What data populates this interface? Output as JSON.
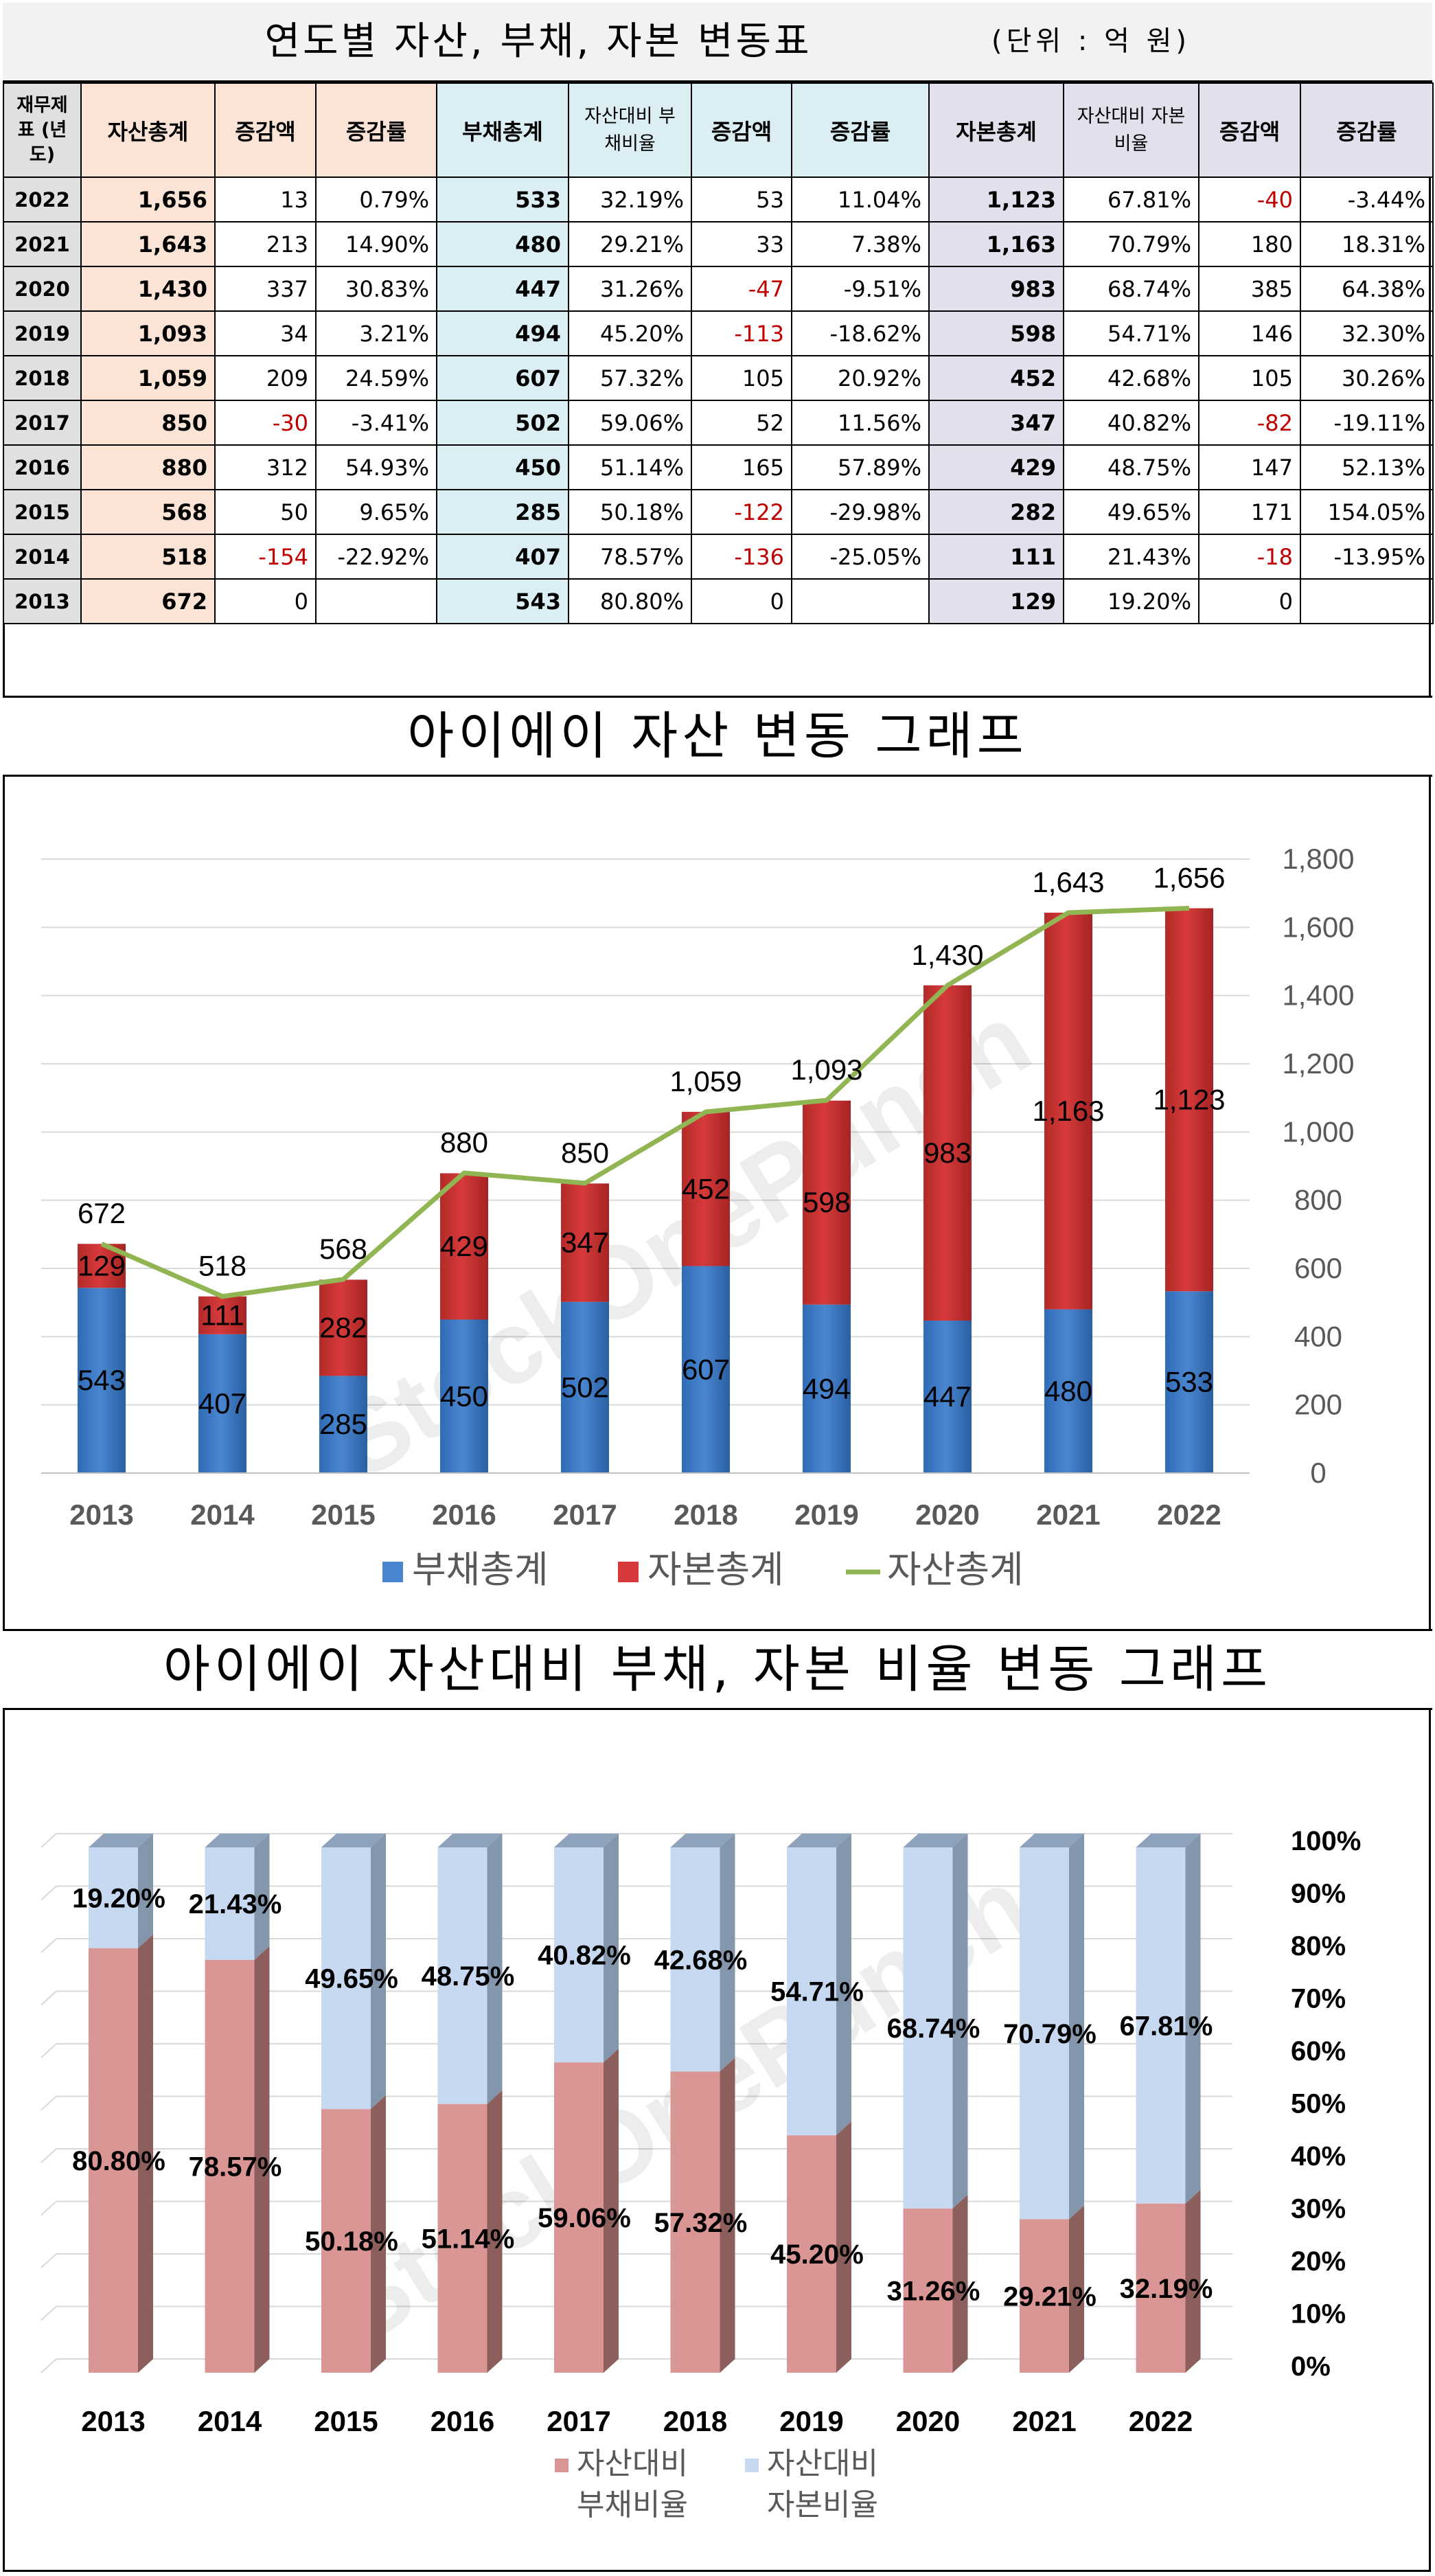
{
  "table": {
    "title": "연도별 자산, 부채, 자본 변동표",
    "unit": "(단위 : 억 원)",
    "headers": {
      "year": "재무제표 (년도)",
      "asset_total": "자산총계",
      "asset_change": "증감액",
      "asset_rate": "증감률",
      "liab_total": "부채총계",
      "liab_ratio": "자산대비 부채비율",
      "liab_change": "증감액",
      "liab_rate": "증감률",
      "eq_total": "자본총계",
      "eq_ratio": "자산대비 자본비율",
      "eq_change": "증감액",
      "eq_rate": "증감률"
    },
    "rows": [
      {
        "year": "2022",
        "asset": "1,656",
        "a_chg": "13",
        "a_rate": "0.79%",
        "liab": "533",
        "l_ratio": "32.19%",
        "l_chg": "53",
        "l_rate": "11.04%",
        "eq": "1,123",
        "e_ratio": "67.81%",
        "e_chg": "-40",
        "e_rate": "-3.44%"
      },
      {
        "year": "2021",
        "asset": "1,643",
        "a_chg": "213",
        "a_rate": "14.90%",
        "liab": "480",
        "l_ratio": "29.21%",
        "l_chg": "33",
        "l_rate": "7.38%",
        "eq": "1,163",
        "e_ratio": "70.79%",
        "e_chg": "180",
        "e_rate": "18.31%"
      },
      {
        "year": "2020",
        "asset": "1,430",
        "a_chg": "337",
        "a_rate": "30.83%",
        "liab": "447",
        "l_ratio": "31.26%",
        "l_chg": "-47",
        "l_rate": "-9.51%",
        "eq": "983",
        "e_ratio": "68.74%",
        "e_chg": "385",
        "e_rate": "64.38%"
      },
      {
        "year": "2019",
        "asset": "1,093",
        "a_chg": "34",
        "a_rate": "3.21%",
        "liab": "494",
        "l_ratio": "45.20%",
        "l_chg": "-113",
        "l_rate": "-18.62%",
        "eq": "598",
        "e_ratio": "54.71%",
        "e_chg": "146",
        "e_rate": "32.30%"
      },
      {
        "year": "2018",
        "asset": "1,059",
        "a_chg": "209",
        "a_rate": "24.59%",
        "liab": "607",
        "l_ratio": "57.32%",
        "l_chg": "105",
        "l_rate": "20.92%",
        "eq": "452",
        "e_ratio": "42.68%",
        "e_chg": "105",
        "e_rate": "30.26%"
      },
      {
        "year": "2017",
        "asset": "850",
        "a_chg": "-30",
        "a_rate": "-3.41%",
        "liab": "502",
        "l_ratio": "59.06%",
        "l_chg": "52",
        "l_rate": "11.56%",
        "eq": "347",
        "e_ratio": "40.82%",
        "e_chg": "-82",
        "e_rate": "-19.11%"
      },
      {
        "year": "2016",
        "asset": "880",
        "a_chg": "312",
        "a_rate": "54.93%",
        "liab": "450",
        "l_ratio": "51.14%",
        "l_chg": "165",
        "l_rate": "57.89%",
        "eq": "429",
        "e_ratio": "48.75%",
        "e_chg": "147",
        "e_rate": "52.13%"
      },
      {
        "year": "2015",
        "asset": "568",
        "a_chg": "50",
        "a_rate": "9.65%",
        "liab": "285",
        "l_ratio": "50.18%",
        "l_chg": "-122",
        "l_rate": "-29.98%",
        "eq": "282",
        "e_ratio": "49.65%",
        "e_chg": "171",
        "e_rate": "154.05%"
      },
      {
        "year": "2014",
        "asset": "518",
        "a_chg": "-154",
        "a_rate": "-22.92%",
        "liab": "407",
        "l_ratio": "78.57%",
        "l_chg": "-136",
        "l_rate": "-25.05%",
        "eq": "111",
        "e_ratio": "21.43%",
        "e_chg": "-18",
        "e_rate": "-13.95%"
      },
      {
        "year": "2013",
        "asset": "672",
        "a_chg": "0",
        "a_rate": "",
        "liab": "543",
        "l_ratio": "80.80%",
        "l_chg": "0",
        "l_rate": "",
        "eq": "129",
        "e_ratio": "19.20%",
        "e_chg": "0",
        "e_rate": ""
      }
    ]
  },
  "colors": {
    "liability_bar": "#4a86cf",
    "equity_bar": "#d63a3a",
    "asset_line": "#92b553",
    "ratio_liability": "#d99694",
    "ratio_equity": "#c6d9f1",
    "negative_text": "#c00000"
  },
  "chart_data": [
    {
      "type": "bar",
      "stacked": true,
      "title": "아이에이 자산 변동 그래프",
      "categories": [
        "2013",
        "2014",
        "2015",
        "2016",
        "2017",
        "2018",
        "2019",
        "2020",
        "2021",
        "2022"
      ],
      "series": [
        {
          "name": "부채총계",
          "kind": "bar",
          "values": [
            543,
            407,
            285,
            450,
            502,
            607,
            494,
            447,
            480,
            533
          ]
        },
        {
          "name": "자본총계",
          "kind": "bar",
          "values": [
            129,
            111,
            282,
            429,
            347,
            452,
            598,
            983,
            1163,
            1123
          ]
        },
        {
          "name": "자산총계",
          "kind": "line",
          "values": [
            672,
            518,
            568,
            880,
            850,
            1059,
            1093,
            1430,
            1643,
            1656
          ]
        }
      ],
      "ylim": [
        0,
        1800
      ],
      "yticks": [
        "0",
        "200",
        "400",
        "600",
        "800",
        "1,000",
        "1,200",
        "1,400",
        "1,600",
        "1,800"
      ],
      "y_axis_side": "right",
      "legend_position": "bottom",
      "grid": true,
      "watermark": "StockOnePunch"
    },
    {
      "type": "bar",
      "stacked": true,
      "percent": true,
      "title": "아이에이 자산대비 부채, 자본 비율 변동 그래프",
      "categories": [
        "2013",
        "2014",
        "2015",
        "2016",
        "2017",
        "2018",
        "2019",
        "2020",
        "2021",
        "2022"
      ],
      "series": [
        {
          "name": "자산대비 부채비율",
          "values": [
            80.8,
            78.57,
            50.18,
            51.14,
            59.06,
            57.32,
            45.2,
            31.26,
            29.21,
            32.19
          ],
          "labels": [
            "80.80%",
            "78.57%",
            "50.18%",
            "51.14%",
            "59.06%",
            "57.32%",
            "45.20%",
            "31.26%",
            "29.21%",
            "32.19%"
          ]
        },
        {
          "name": "자산대비 자본비율",
          "values": [
            19.2,
            21.43,
            49.65,
            48.75,
            40.82,
            42.68,
            54.71,
            68.74,
            70.79,
            67.81
          ],
          "labels": [
            "19.20%",
            "21.43%",
            "49.65%",
            "48.75%",
            "40.82%",
            "42.68%",
            "54.71%",
            "68.74%",
            "70.79%",
            "67.81%"
          ]
        }
      ],
      "ylim": [
        0,
        100
      ],
      "yticks": [
        "0%",
        "10%",
        "20%",
        "30%",
        "40%",
        "50%",
        "60%",
        "70%",
        "80%",
        "90%",
        "100%"
      ],
      "y_axis_side": "right",
      "legend_position": "bottom",
      "grid": true,
      "watermark": "StockOnePunch"
    }
  ]
}
